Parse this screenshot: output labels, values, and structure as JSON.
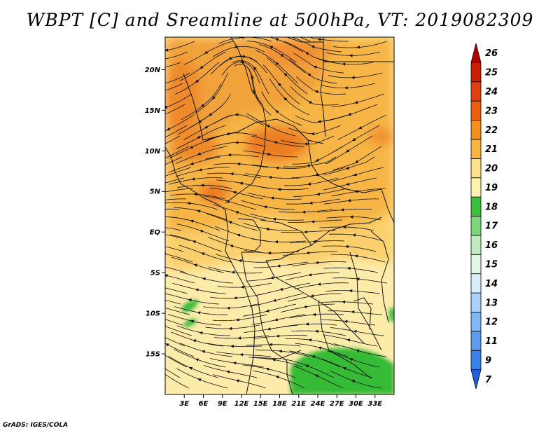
{
  "title": "WBPT [C] and Sreamline at 500hPa, VT: 2019082309",
  "credit": "GrADS: IGES/COLA",
  "map": {
    "lon_range": [
      0,
      36
    ],
    "lat_range": [
      -20,
      24
    ],
    "lon_ticks": [
      3,
      6,
      9,
      12,
      15,
      18,
      21,
      24,
      27,
      30,
      33
    ],
    "lon_labels": [
      "3E",
      "6E",
      "9E",
      "12E",
      "15E",
      "18E",
      "21E",
      "24E",
      "27E",
      "30E",
      "33E"
    ],
    "lat_ticks": [
      20,
      15,
      10,
      5,
      0,
      -5,
      -10,
      -15
    ],
    "lat_labels": [
      "20N",
      "15N",
      "10N",
      "5N",
      "EQ",
      "5S",
      "10S",
      "15S"
    ]
  },
  "colorbar": {
    "levels": [
      "7",
      "9",
      "11",
      "12",
      "13",
      "14",
      "15",
      "16",
      "17",
      "18",
      "19",
      "20",
      "21",
      "22",
      "23",
      "24",
      "25",
      "26"
    ],
    "colors": [
      "#2060d8",
      "#3a80e8",
      "#5a9cf0",
      "#7eb8f5",
      "#a8d2fa",
      "#d8eefc",
      "#e2f8e2",
      "#c0ecc0",
      "#7ad77a",
      "#3cbf3c",
      "#fff2b0",
      "#fde08a",
      "#f8b640",
      "#f39020",
      "#ec6010",
      "#e04010",
      "#cc2000",
      "#b00000"
    ]
  }
}
